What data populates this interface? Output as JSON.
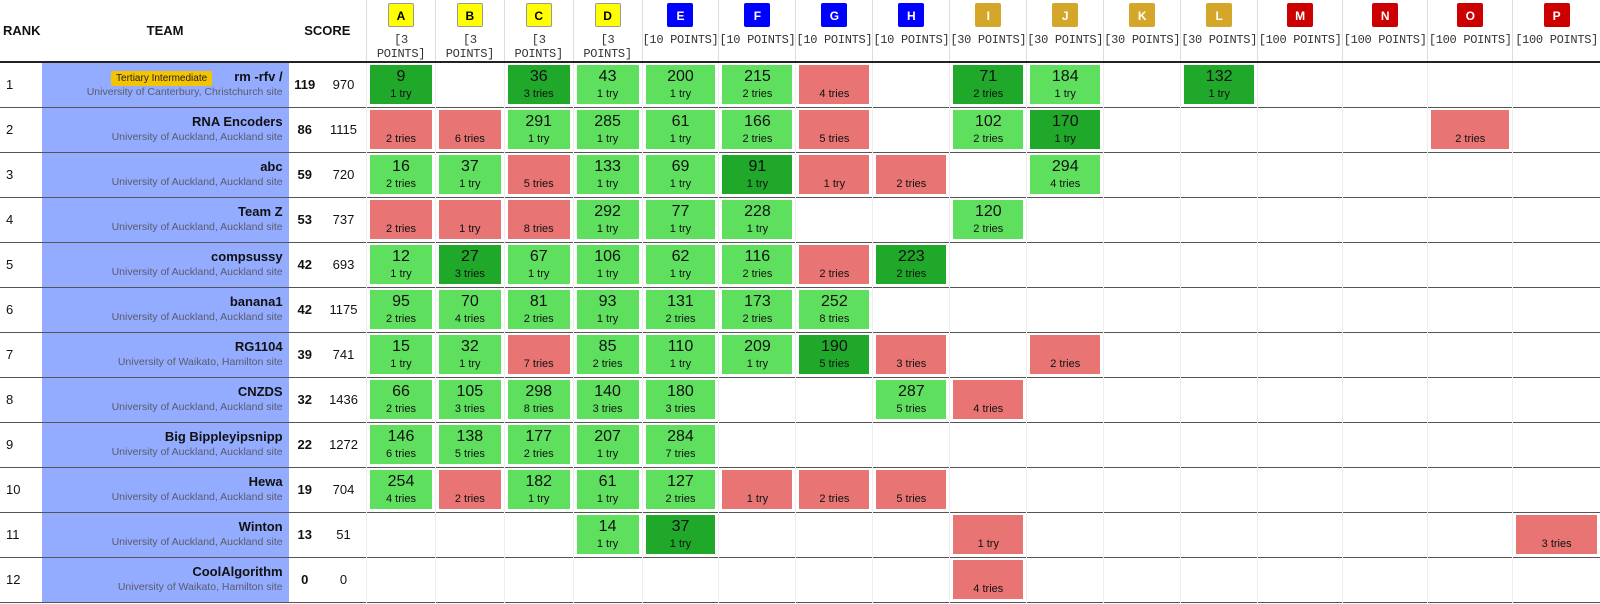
{
  "header": {
    "rank": "RANK",
    "team": "TEAM",
    "score": "SCORE"
  },
  "problems": [
    {
      "letter": "A",
      "points": "[3 POINTS]",
      "bg": "#ffff00",
      "fg": "#000000"
    },
    {
      "letter": "B",
      "points": "[3 POINTS]",
      "bg": "#ffff00",
      "fg": "#000000"
    },
    {
      "letter": "C",
      "points": "[3 POINTS]",
      "bg": "#ffff00",
      "fg": "#000000"
    },
    {
      "letter": "D",
      "points": "[3 POINTS]",
      "bg": "#ffff00",
      "fg": "#000000"
    },
    {
      "letter": "E",
      "points": "[10 POINTS]",
      "bg": "#0000ff",
      "fg": "#ffffff"
    },
    {
      "letter": "F",
      "points": "[10 POINTS]",
      "bg": "#0000ff",
      "fg": "#ffffff"
    },
    {
      "letter": "G",
      "points": "[10 POINTS]",
      "bg": "#0000ff",
      "fg": "#ffffff"
    },
    {
      "letter": "H",
      "points": "[10 POINTS]",
      "bg": "#0000ff",
      "fg": "#ffffff"
    },
    {
      "letter": "I",
      "points": "[30 POINTS]",
      "bg": "#d4a62a",
      "fg": "#ffffff"
    },
    {
      "letter": "J",
      "points": "[30 POINTS]",
      "bg": "#d4a62a",
      "fg": "#ffffff"
    },
    {
      "letter": "K",
      "points": "[30 POINTS]",
      "bg": "#d4a62a",
      "fg": "#ffffff"
    },
    {
      "letter": "L",
      "points": "[30 POINTS]",
      "bg": "#d4a62a",
      "fg": "#ffffff"
    },
    {
      "letter": "M",
      "points": "[100 POINTS]",
      "bg": "#cc0000",
      "fg": "#ffffff"
    },
    {
      "letter": "N",
      "points": "[100 POINTS]",
      "bg": "#cc0000",
      "fg": "#ffffff"
    },
    {
      "letter": "O",
      "points": "[100 POINTS]",
      "bg": "#cc0000",
      "fg": "#ffffff"
    },
    {
      "letter": "P",
      "points": "[100 POINTS]",
      "bg": "#cc0000",
      "fg": "#ffffff"
    }
  ],
  "status_colors": {
    "solved": "#5ee05e",
    "first": "#1fa82a",
    "failed": "#e87474",
    "team_bg": "#93acff",
    "category": "#f5c400"
  },
  "teams": [
    {
      "rank": "1",
      "name": "rm -rfv /",
      "category": "Tertiary Intermediate",
      "site": "University of Canterbury, Christchurch site",
      "solved": "119",
      "penalty": "970",
      "cells": [
        [
          "first",
          "9",
          "1 try"
        ],
        null,
        [
          "first",
          "36",
          "3 tries"
        ],
        [
          "ok",
          "43",
          "1 try"
        ],
        [
          "ok",
          "200",
          "1 try"
        ],
        [
          "ok",
          "215",
          "2 tries"
        ],
        [
          "bad",
          "",
          "4 tries"
        ],
        null,
        [
          "first",
          "71",
          "2 tries"
        ],
        [
          "ok",
          "184",
          "1 try"
        ],
        null,
        [
          "first",
          "132",
          "1 try"
        ],
        null,
        null,
        null,
        null
      ]
    },
    {
      "rank": "2",
      "name": "RNA Encoders",
      "category": "",
      "site": "University of Auckland, Auckland site",
      "solved": "86",
      "penalty": "1115",
      "cells": [
        [
          "bad",
          "",
          "2 tries"
        ],
        [
          "bad",
          "",
          "6 tries"
        ],
        [
          "ok",
          "291",
          "1 try"
        ],
        [
          "ok",
          "285",
          "1 try"
        ],
        [
          "ok",
          "61",
          "1 try"
        ],
        [
          "ok",
          "166",
          "2 tries"
        ],
        [
          "bad",
          "",
          "5 tries"
        ],
        null,
        [
          "ok",
          "102",
          "2 tries"
        ],
        [
          "first",
          "170",
          "1 try"
        ],
        null,
        null,
        null,
        null,
        [
          "bad",
          "",
          "2 tries"
        ],
        null
      ]
    },
    {
      "rank": "3",
      "name": "abc",
      "category": "",
      "site": "University of Auckland, Auckland site",
      "solved": "59",
      "penalty": "720",
      "cells": [
        [
          "ok",
          "16",
          "2 tries"
        ],
        [
          "ok",
          "37",
          "1 try"
        ],
        [
          "bad",
          "",
          "5 tries"
        ],
        [
          "ok",
          "133",
          "1 try"
        ],
        [
          "ok",
          "69",
          "1 try"
        ],
        [
          "first",
          "91",
          "1 try"
        ],
        [
          "bad",
          "",
          "1 try"
        ],
        [
          "bad",
          "",
          "2 tries"
        ],
        null,
        [
          "ok",
          "294",
          "4 tries"
        ],
        null,
        null,
        null,
        null,
        null,
        null
      ]
    },
    {
      "rank": "4",
      "name": "Team Z",
      "category": "",
      "site": "University of Auckland, Auckland site",
      "solved": "53",
      "penalty": "737",
      "cells": [
        [
          "bad",
          "",
          "2 tries"
        ],
        [
          "bad",
          "",
          "1 try"
        ],
        [
          "bad",
          "",
          "8 tries"
        ],
        [
          "ok",
          "292",
          "1 try"
        ],
        [
          "ok",
          "77",
          "1 try"
        ],
        [
          "ok",
          "228",
          "1 try"
        ],
        null,
        null,
        [
          "ok",
          "120",
          "2 tries"
        ],
        null,
        null,
        null,
        null,
        null,
        null,
        null
      ]
    },
    {
      "rank": "5",
      "name": "compsussy",
      "category": "",
      "site": "University of Auckland, Auckland site",
      "solved": "42",
      "penalty": "693",
      "cells": [
        [
          "ok",
          "12",
          "1 try"
        ],
        [
          "first",
          "27",
          "3 tries"
        ],
        [
          "ok",
          "67",
          "1 try"
        ],
        [
          "ok",
          "106",
          "1 try"
        ],
        [
          "ok",
          "62",
          "1 try"
        ],
        [
          "ok",
          "116",
          "2 tries"
        ],
        [
          "bad",
          "",
          "2 tries"
        ],
        [
          "first",
          "223",
          "2 tries"
        ],
        null,
        null,
        null,
        null,
        null,
        null,
        null,
        null
      ]
    },
    {
      "rank": "6",
      "name": "banana1",
      "category": "",
      "site": "University of Auckland, Auckland site",
      "solved": "42",
      "penalty": "1175",
      "cells": [
        [
          "ok",
          "95",
          "2 tries"
        ],
        [
          "ok",
          "70",
          "4 tries"
        ],
        [
          "ok",
          "81",
          "2 tries"
        ],
        [
          "ok",
          "93",
          "1 try"
        ],
        [
          "ok",
          "131",
          "2 tries"
        ],
        [
          "ok",
          "173",
          "2 tries"
        ],
        [
          "ok",
          "252",
          "8 tries"
        ],
        null,
        null,
        null,
        null,
        null,
        null,
        null,
        null,
        null
      ]
    },
    {
      "rank": "7",
      "name": "RG1104",
      "category": "",
      "site": "University of Waikato, Hamilton site",
      "solved": "39",
      "penalty": "741",
      "cells": [
        [
          "ok",
          "15",
          "1 try"
        ],
        [
          "ok",
          "32",
          "1 try"
        ],
        [
          "bad",
          "",
          "7 tries"
        ],
        [
          "ok",
          "85",
          "2 tries"
        ],
        [
          "ok",
          "110",
          "1 try"
        ],
        [
          "ok",
          "209",
          "1 try"
        ],
        [
          "first",
          "190",
          "5 tries"
        ],
        [
          "bad",
          "",
          "3 tries"
        ],
        null,
        [
          "bad",
          "",
          "2 tries"
        ],
        null,
        null,
        null,
        null,
        null,
        null
      ]
    },
    {
      "rank": "8",
      "name": "CNZDS",
      "category": "",
      "site": "University of Auckland, Auckland site",
      "solved": "32",
      "penalty": "1436",
      "cells": [
        [
          "ok",
          "66",
          "2 tries"
        ],
        [
          "ok",
          "105",
          "3 tries"
        ],
        [
          "ok",
          "298",
          "8 tries"
        ],
        [
          "ok",
          "140",
          "3 tries"
        ],
        [
          "ok",
          "180",
          "3 tries"
        ],
        null,
        null,
        [
          "ok",
          "287",
          "5 tries"
        ],
        [
          "bad",
          "",
          "4 tries"
        ],
        null,
        null,
        null,
        null,
        null,
        null,
        null
      ]
    },
    {
      "rank": "9",
      "name": "Big Bippleyipsnipp",
      "category": "",
      "site": "University of Auckland, Auckland site",
      "solved": "22",
      "penalty": "1272",
      "cells": [
        [
          "ok",
          "146",
          "6 tries"
        ],
        [
          "ok",
          "138",
          "5 tries"
        ],
        [
          "ok",
          "177",
          "2 tries"
        ],
        [
          "ok",
          "207",
          "1 try"
        ],
        [
          "ok",
          "284",
          "7 tries"
        ],
        null,
        null,
        null,
        null,
        null,
        null,
        null,
        null,
        null,
        null,
        null
      ]
    },
    {
      "rank": "10",
      "name": "Hewa",
      "category": "",
      "site": "University of Auckland, Auckland site",
      "solved": "19",
      "penalty": "704",
      "cells": [
        [
          "ok",
          "254",
          "4 tries"
        ],
        [
          "bad",
          "",
          "2 tries"
        ],
        [
          "ok",
          "182",
          "1 try"
        ],
        [
          "ok",
          "61",
          "1 try"
        ],
        [
          "ok",
          "127",
          "2 tries"
        ],
        [
          "bad",
          "",
          "1 try"
        ],
        [
          "bad",
          "",
          "2 tries"
        ],
        [
          "bad",
          "",
          "5 tries"
        ],
        null,
        null,
        null,
        null,
        null,
        null,
        null,
        null
      ]
    },
    {
      "rank": "11",
      "name": "Winton",
      "category": "",
      "site": "University of Auckland, Auckland site",
      "solved": "13",
      "penalty": "51",
      "cells": [
        null,
        null,
        null,
        [
          "ok",
          "14",
          "1 try"
        ],
        [
          "first",
          "37",
          "1 try"
        ],
        null,
        null,
        null,
        [
          "bad",
          "",
          "1 try"
        ],
        null,
        null,
        null,
        null,
        null,
        null,
        [
          "bad",
          "",
          "3 tries"
        ]
      ]
    },
    {
      "rank": "12",
      "name": "CoolAlgorithm",
      "category": "",
      "site": "University of Waikato, Hamilton site",
      "solved": "0",
      "penalty": "0",
      "cells": [
        null,
        null,
        null,
        null,
        null,
        null,
        null,
        null,
        [
          "bad",
          "",
          "4 tries"
        ],
        null,
        null,
        null,
        null,
        null,
        null,
        null
      ]
    }
  ]
}
